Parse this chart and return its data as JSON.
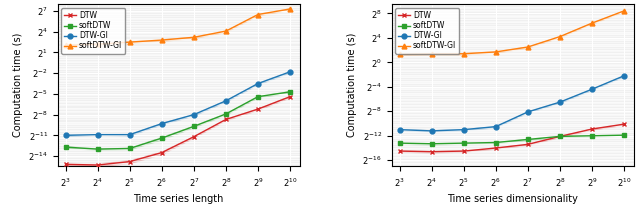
{
  "x_ticks": [
    3,
    4,
    5,
    6,
    7,
    8,
    9,
    10
  ],
  "left": {
    "xlabel": "Time series length",
    "ylabel": "Computation time (s)",
    "ylim_exp": [
      -15.5,
      8.0
    ],
    "yticks_exp": [
      -14,
      -11,
      -8,
      -5,
      -2,
      1,
      4,
      7
    ],
    "DTW": [
      -15.2,
      -15.3,
      -14.8,
      -13.5,
      -11.2,
      -8.7,
      -7.2,
      -5.4
    ],
    "softDTW": [
      -12.7,
      -13.0,
      -12.9,
      -11.4,
      -9.7,
      -7.9,
      -5.4,
      -4.7
    ],
    "DTW_GI": [
      -11.0,
      -10.9,
      -10.9,
      -9.3,
      -8.0,
      -6.0,
      -3.5,
      -1.8
    ],
    "softDTW_GI": [
      2.1,
      2.2,
      2.5,
      2.8,
      3.2,
      4.1,
      6.5,
      7.3
    ],
    "DTW_lo": [
      -15.5,
      -15.6,
      -15.1,
      -13.8,
      -11.4,
      -8.9,
      -7.4,
      -5.6
    ],
    "DTW_hi": [
      -14.9,
      -15.0,
      -14.5,
      -13.2,
      -11.0,
      -8.5,
      -7.0,
      -5.2
    ],
    "softDTW_lo": [
      -12.9,
      -13.2,
      -13.1,
      -11.7,
      -9.9,
      -8.1,
      -5.6,
      -4.9
    ],
    "softDTW_hi": [
      -12.5,
      -12.8,
      -12.7,
      -11.1,
      -9.5,
      -7.7,
      -5.2,
      -4.5
    ],
    "DTW_GI_lo": [
      -11.2,
      -11.0,
      -11.1,
      -9.5,
      -8.2,
      -6.2,
      -3.7,
      -2.0
    ],
    "DTW_GI_hi": [
      -10.8,
      -10.8,
      -10.7,
      -9.1,
      -7.8,
      -5.8,
      -3.3,
      -1.6
    ],
    "softDTW_GI_lo": [
      1.9,
      2.0,
      2.3,
      2.6,
      3.0,
      3.9,
      6.3,
      7.1
    ],
    "softDTW_GI_hi": [
      2.3,
      2.4,
      2.7,
      3.0,
      3.4,
      4.3,
      6.7,
      7.5
    ]
  },
  "right": {
    "xlabel": "Time series dimensionality",
    "ylabel": "Computation time (s)",
    "ylim_exp": [
      -17.0,
      9.5
    ],
    "yticks_exp": [
      -16,
      -12,
      -8,
      -4,
      0,
      4,
      8
    ],
    "DTW": [
      -14.5,
      -14.6,
      -14.5,
      -14.0,
      -13.4,
      -12.1,
      -10.9,
      -10.1
    ],
    "softDTW": [
      -13.2,
      -13.3,
      -13.2,
      -13.1,
      -12.6,
      -12.1,
      -12.0,
      -11.9
    ],
    "DTW_GI": [
      -11.0,
      -11.2,
      -11.0,
      -10.5,
      -8.1,
      -6.5,
      -4.4,
      -2.2
    ],
    "softDTW_GI": [
      1.3,
      1.4,
      1.4,
      1.7,
      2.5,
      4.2,
      6.4,
      8.4
    ],
    "DTW_lo": [
      -14.7,
      -14.8,
      -14.7,
      -14.2,
      -13.6,
      -12.3,
      -11.1,
      -10.3
    ],
    "DTW_hi": [
      -14.3,
      -14.4,
      -14.3,
      -13.8,
      -13.2,
      -11.9,
      -10.7,
      -9.9
    ],
    "softDTW_lo": [
      -13.4,
      -13.5,
      -13.4,
      -13.3,
      -12.8,
      -12.3,
      -12.2,
      -12.1
    ],
    "softDTW_hi": [
      -13.0,
      -13.1,
      -13.0,
      -12.9,
      -12.4,
      -11.9,
      -11.8,
      -11.7
    ],
    "DTW_GI_lo": [
      -11.2,
      -11.4,
      -11.2,
      -10.7,
      -8.3,
      -6.7,
      -4.6,
      -2.4
    ],
    "DTW_GI_hi": [
      -10.8,
      -11.0,
      -10.8,
      -10.3,
      -7.9,
      -6.3,
      -4.2,
      -2.0
    ],
    "softDTW_GI_lo": [
      1.1,
      1.2,
      1.2,
      1.5,
      2.3,
      4.0,
      6.2,
      8.2
    ],
    "softDTW_GI_hi": [
      1.5,
      1.6,
      1.6,
      1.9,
      2.7,
      4.4,
      6.6,
      8.6
    ]
  },
  "colors": {
    "DTW": "#d62728",
    "softDTW": "#2ca02c",
    "DTW_GI": "#1f77b4",
    "softDTW_GI": "#ff7f0e"
  },
  "markers": {
    "DTW": "x",
    "softDTW": "s",
    "DTW_GI": "o",
    "softDTW_GI": "^"
  },
  "labels": {
    "DTW": "DTW",
    "softDTW": "softDTW",
    "DTW_GI": "DTW-GI",
    "softDTW_GI": "softDTW-GI"
  },
  "bg_color": "#f0f0f0"
}
